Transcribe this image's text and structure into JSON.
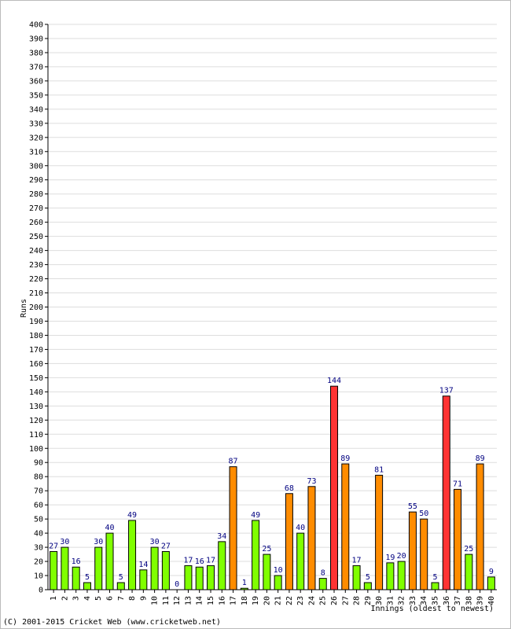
{
  "chart_data": {
    "type": "bar",
    "ylabel": "Runs",
    "xlabel": "Innings (oldest to newest)",
    "ylim": [
      0,
      400
    ],
    "ytick_step": 10,
    "grid": true,
    "categories": [
      "1",
      "2",
      "3",
      "4",
      "5",
      "6",
      "7",
      "8",
      "9",
      "10",
      "11",
      "12",
      "13",
      "14",
      "15",
      "16",
      "17",
      "18",
      "19",
      "20",
      "21",
      "22",
      "23",
      "24",
      "25",
      "26",
      "27",
      "28",
      "29",
      "30",
      "31",
      "32",
      "33",
      "34",
      "35",
      "36",
      "37",
      "38",
      "39",
      "40"
    ],
    "values": [
      27,
      30,
      16,
      5,
      30,
      40,
      5,
      49,
      14,
      30,
      27,
      0,
      17,
      16,
      17,
      34,
      87,
      1,
      49,
      25,
      10,
      68,
      40,
      73,
      8,
      144,
      89,
      17,
      5,
      81,
      19,
      20,
      55,
      50,
      5,
      137,
      71,
      25,
      89,
      9
    ],
    "colors": {
      "under_50": "#80ff00",
      "50_to_99": "#ff8c00",
      "100_plus": "#ff3333",
      "grid": "#dddddd",
      "axis": "#000000",
      "data_label": "#000080"
    }
  },
  "footer": {
    "copyright": "(C) 2001-2015 Cricket Web (www.cricketweb.net)"
  }
}
